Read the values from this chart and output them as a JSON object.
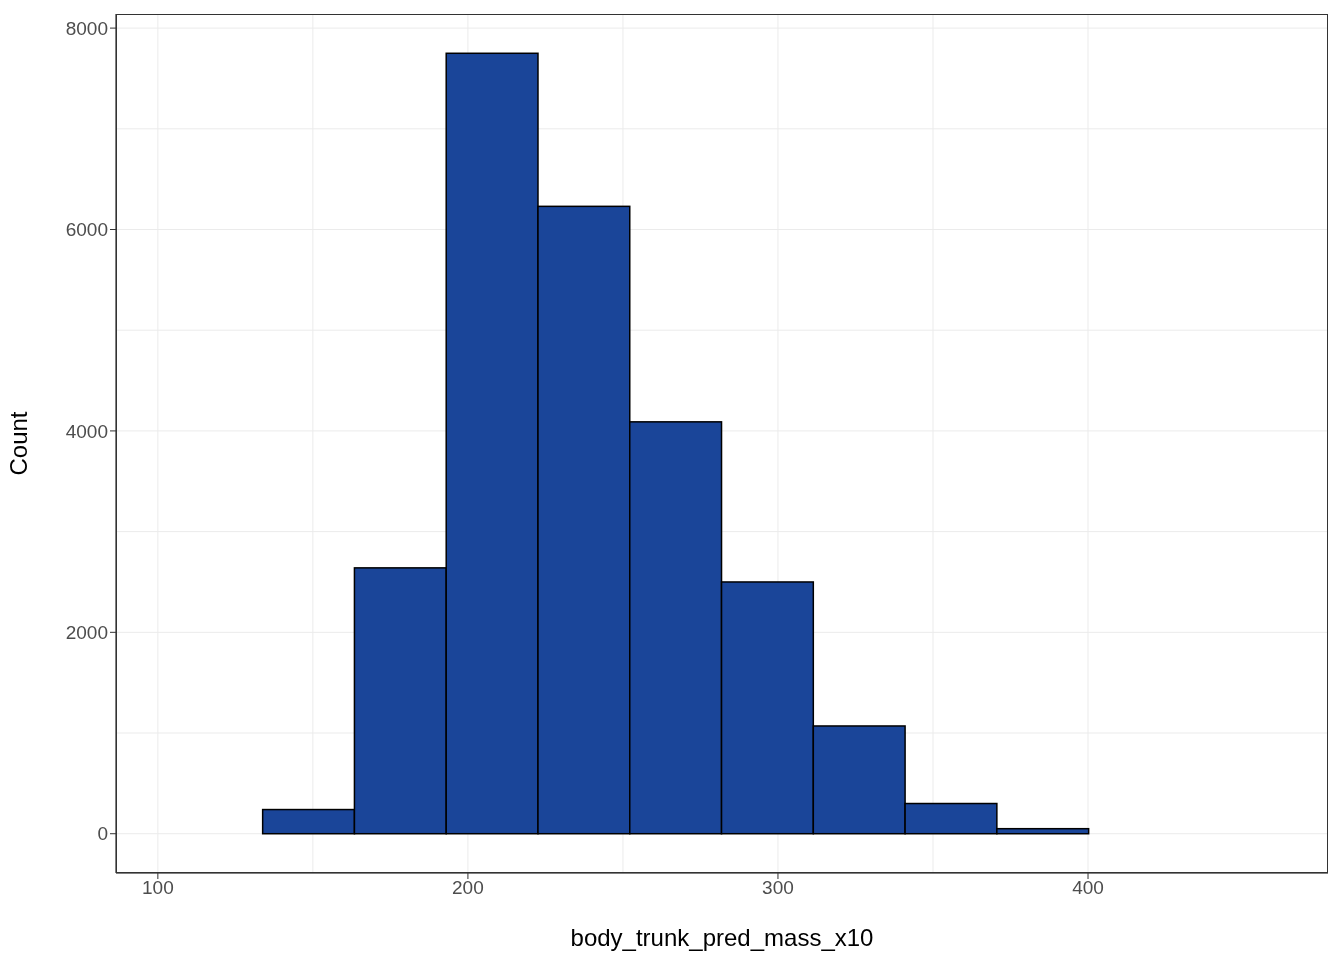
{
  "chart_data": {
    "type": "histogram",
    "xlabel": "body_trunk_pred_mass_x10",
    "ylabel": "Count",
    "bins": [
      104.2,
      133.8,
      163.4,
      193,
      222.6,
      252.2,
      281.8,
      311.4,
      341,
      370.6,
      400.2,
      429.8,
      459.4
    ],
    "values": [
      0,
      240,
      2640,
      7750,
      6230,
      4090,
      2500,
      1070,
      300,
      50,
      0,
      0
    ],
    "color": "#1a4599",
    "xlim": [
      86.5,
      477.4
    ],
    "xticks": [
      100,
      200,
      300,
      400
    ],
    "ylim": [
      -390,
      8140
    ],
    "yticks": [
      0,
      2000,
      4000,
      6000,
      8000
    ],
    "grid": true
  }
}
